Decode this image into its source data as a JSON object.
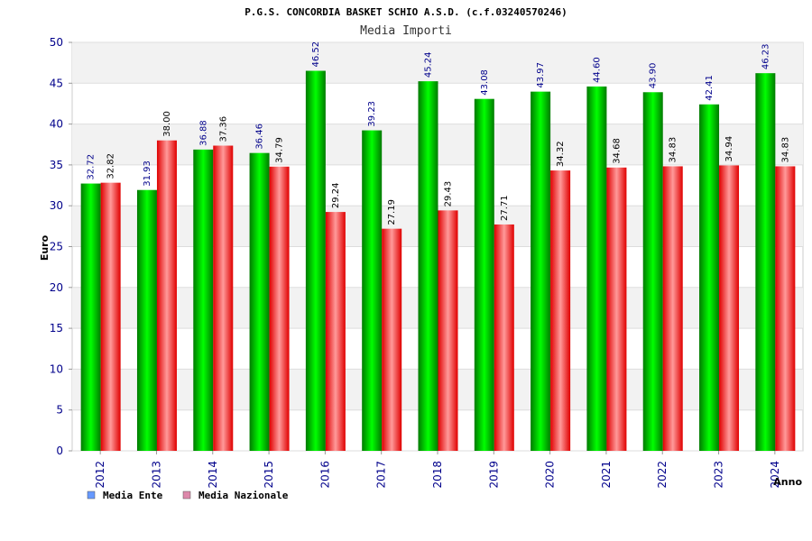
{
  "chart_data": {
    "type": "bar",
    "title": "P.G.S. CONCORDIA BASKET SCHIO A.S.D. (c.f.03240570246)",
    "subtitle": "Media Importi",
    "xlabel": "Anno",
    "ylabel": "Euro",
    "ylim": [
      0,
      50
    ],
    "yticks": [
      0,
      5,
      10,
      15,
      20,
      25,
      30,
      35,
      40,
      45,
      50
    ],
    "grid": true,
    "legend_position": "bottom-left",
    "categories": [
      "2012",
      "2013",
      "2014",
      "2015",
      "2016",
      "2017",
      "2018",
      "2019",
      "2020",
      "2021",
      "2022",
      "2023",
      "2024"
    ],
    "series": [
      {
        "name": "Media Ente",
        "values": [
          32.72,
          31.93,
          36.88,
          36.46,
          46.52,
          39.23,
          45.24,
          43.08,
          43.97,
          44.6,
          43.9,
          42.41,
          46.23
        ],
        "labels": [
          "32.72",
          "31.93",
          "36.88",
          "36.46",
          "46.52",
          "39.23",
          "45.24",
          "43.08",
          "43.97",
          "44.60",
          "43.90",
          "42.41",
          "46.23"
        ],
        "color": "#00c000",
        "legend_color": "#6699ff",
        "label_color": "#00008b"
      },
      {
        "name": "Media Nazionale",
        "values": [
          32.82,
          38.0,
          37.36,
          34.79,
          29.24,
          27.19,
          29.43,
          27.71,
          34.32,
          34.68,
          34.83,
          34.94,
          34.83
        ],
        "labels": [
          "32.82",
          "38.00",
          "37.36",
          "34.79",
          "29.24",
          "27.19",
          "29.43",
          "27.71",
          "34.32",
          "34.68",
          "34.83",
          "34.94",
          "34.83"
        ],
        "color": "#ff2020",
        "legend_color": "#dd88aa",
        "label_color": "#000000"
      }
    ]
  }
}
